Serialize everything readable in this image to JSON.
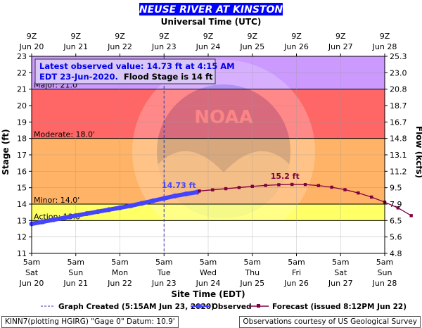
{
  "header": {
    "title": "NEUSE RIVER AT KINSTON",
    "utc_label": "Universal Time (UTC)",
    "colors": {
      "title_bg": "#0000ff",
      "title_text": "#ffffff"
    }
  },
  "annotation": {
    "line1": "Latest observed value: 14.73 ft at 4:15 AM",
    "line2_a": "EDT 23-Jun-2020.",
    "line2_b": "Flood Stage is 14 ft"
  },
  "legend": {
    "created": "Graph Created (5:15AM Jun 23, 2020)",
    "observed": "Observed",
    "forecast": "Forecast (issued 8:12PM Jun 22)"
  },
  "footer": {
    "left": "KINN7(plotting HGIRG) \"Gage 0\" Datum: 10.9'",
    "right": "Observations courtesy of US Geological Survey"
  },
  "chart_data": {
    "type": "line",
    "ylabel": "Stage (ft)",
    "y2label": "Flow (kcfs)",
    "xlabel": "Site Time (EDT)",
    "ylim": [
      11,
      23
    ],
    "y_ticks": [
      11,
      12,
      13,
      14,
      15,
      16,
      17,
      18,
      19,
      20,
      21,
      22,
      23
    ],
    "y2_ticks": [
      "4.8",
      "5.6",
      "6.5",
      "7.9",
      "9.5",
      "11.2",
      "13.1",
      "14.8",
      "16.7",
      "18.7",
      "20.8",
      "23.0",
      "25.3"
    ],
    "x_range_days": [
      20,
      28
    ],
    "bottom_ticks": [
      {
        "line1": "5am",
        "line2": "Sat",
        "line3": "Jun 20"
      },
      {
        "line1": "5am",
        "line2": "Sun",
        "line3": "Jun 21"
      },
      {
        "line1": "5am",
        "line2": "Mon",
        "line3": "Jun 22"
      },
      {
        "line1": "5am",
        "line2": "Tue",
        "line3": "Jun 23"
      },
      {
        "line1": "5am",
        "line2": "Wed",
        "line3": "Jun 24"
      },
      {
        "line1": "5am",
        "line2": "Thu",
        "line3": "Jun 25"
      },
      {
        "line1": "5am",
        "line2": "Fri",
        "line3": "Jun 26"
      },
      {
        "line1": "5am",
        "line2": "Sat",
        "line3": "Jun 27"
      },
      {
        "line1": "5am",
        "line2": "Sun",
        "line3": "Jun 28"
      }
    ],
    "top_ticks": [
      {
        "line1": "9Z",
        "line2": "Jun 20"
      },
      {
        "line1": "9Z",
        "line2": "Jun 21"
      },
      {
        "line1": "9Z",
        "line2": "Jun 22"
      },
      {
        "line1": "9Z",
        "line2": "Jun 23"
      },
      {
        "line1": "9Z",
        "line2": "Jun 24"
      },
      {
        "line1": "9Z",
        "line2": "Jun 25"
      },
      {
        "line1": "9Z",
        "line2": "Jun 26"
      },
      {
        "line1": "9Z",
        "line2": "Jun 27"
      },
      {
        "line1": "9Z",
        "line2": "Jun 28"
      }
    ],
    "flood_zones": [
      {
        "name": "Major",
        "from": 21,
        "to": 23,
        "color": "#cc99ff",
        "label": "Major: 21.0'"
      },
      {
        "name": "Moderate",
        "from": 18,
        "to": 21,
        "color": "#ff6666",
        "label": "Moderate: 18.0'"
      },
      {
        "name": "Minor",
        "from": 14,
        "to": 18,
        "color": "#ffb366",
        "label": "Minor: 14.0'"
      },
      {
        "name": "Action",
        "from": 13,
        "to": 14,
        "color": "#ffff66",
        "label": "Action: 13.0'"
      }
    ],
    "graph_created_day": 23.0,
    "observed": {
      "name": "Observed",
      "color": "#4444ff",
      "peak_label": "14.73 ft",
      "points": [
        [
          20.0,
          12.8
        ],
        [
          20.25,
          12.92
        ],
        [
          20.5,
          13.05
        ],
        [
          20.75,
          13.17
        ],
        [
          21.0,
          13.3
        ],
        [
          21.25,
          13.42
        ],
        [
          21.5,
          13.54
        ],
        [
          21.75,
          13.66
        ],
        [
          22.0,
          13.78
        ],
        [
          22.25,
          13.9
        ],
        [
          22.5,
          14.05
        ],
        [
          22.75,
          14.2
        ],
        [
          23.0,
          14.35
        ],
        [
          23.25,
          14.5
        ],
        [
          23.5,
          14.62
        ],
        [
          23.75,
          14.73
        ]
      ]
    },
    "forecast": {
      "name": "Forecast",
      "color": "#800040",
      "peak_label": "15.2 ft",
      "points": [
        [
          23.8,
          14.8
        ],
        [
          24.1,
          14.87
        ],
        [
          24.4,
          14.94
        ],
        [
          24.7,
          15.01
        ],
        [
          25.0,
          15.08
        ],
        [
          25.3,
          15.14
        ],
        [
          25.6,
          15.18
        ],
        [
          25.9,
          15.2
        ],
        [
          26.2,
          15.19
        ],
        [
          26.5,
          15.13
        ],
        [
          26.8,
          15.03
        ],
        [
          27.1,
          14.88
        ],
        [
          27.4,
          14.68
        ],
        [
          27.7,
          14.43
        ],
        [
          28.0,
          14.12
        ],
        [
          28.3,
          13.77
        ],
        [
          28.6,
          13.3
        ]
      ]
    },
    "colors": {
      "normal": "#ffffff",
      "grid": "#888888",
      "created_line": "#3333aa"
    }
  }
}
